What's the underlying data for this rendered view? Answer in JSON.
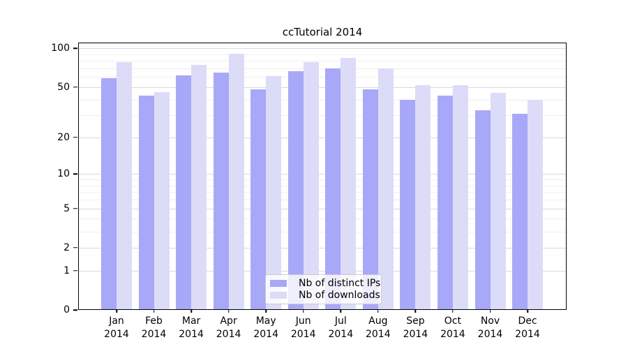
{
  "title": "ccTutorial 2014",
  "colors": {
    "figure_bg": "#ffffff",
    "bar_distinct_ips": "#a8a8f8",
    "bar_downloads": "#dcdcf8",
    "grid_major": "#d9d9d9",
    "grid_minor": "#efefef",
    "spine": "#000000",
    "text": "#000000",
    "legend_border": "#cccccc"
  },
  "chart_data": {
    "type": "bar",
    "title": "ccTutorial 2014",
    "categories": [
      "Jan",
      "Feb",
      "Mar",
      "Apr",
      "May",
      "Jun",
      "Jul",
      "Aug",
      "Sep",
      "Oct",
      "Nov",
      "Dec"
    ],
    "year": "2014",
    "series": [
      {
        "key": "distinct-ips",
        "name": "Nb of distinct IPs",
        "color": "#a8a8f8",
        "values": [
          59,
          43,
          62,
          65,
          48,
          67,
          70,
          48,
          40,
          43,
          33,
          31
        ]
      },
      {
        "key": "downloads",
        "name": "Nb of downloads",
        "color": "#dcdcf8",
        "values": [
          78,
          46,
          75,
          91,
          61,
          78,
          84,
          70,
          52,
          52,
          45,
          40
        ]
      }
    ],
    "xlabel": "",
    "ylabel": "",
    "yscale": "symlog: position proportional to ln(1+value)",
    "yticks": [
      0,
      1,
      2,
      5,
      10,
      20,
      50,
      100
    ],
    "yticks_minor": [
      3,
      4,
      6,
      7,
      8,
      9,
      30,
      40,
      60,
      70,
      80,
      90
    ],
    "ylim": [
      0,
      111
    ],
    "grid": "horizontal major and minor",
    "legend_position": "lower center inside plot"
  }
}
